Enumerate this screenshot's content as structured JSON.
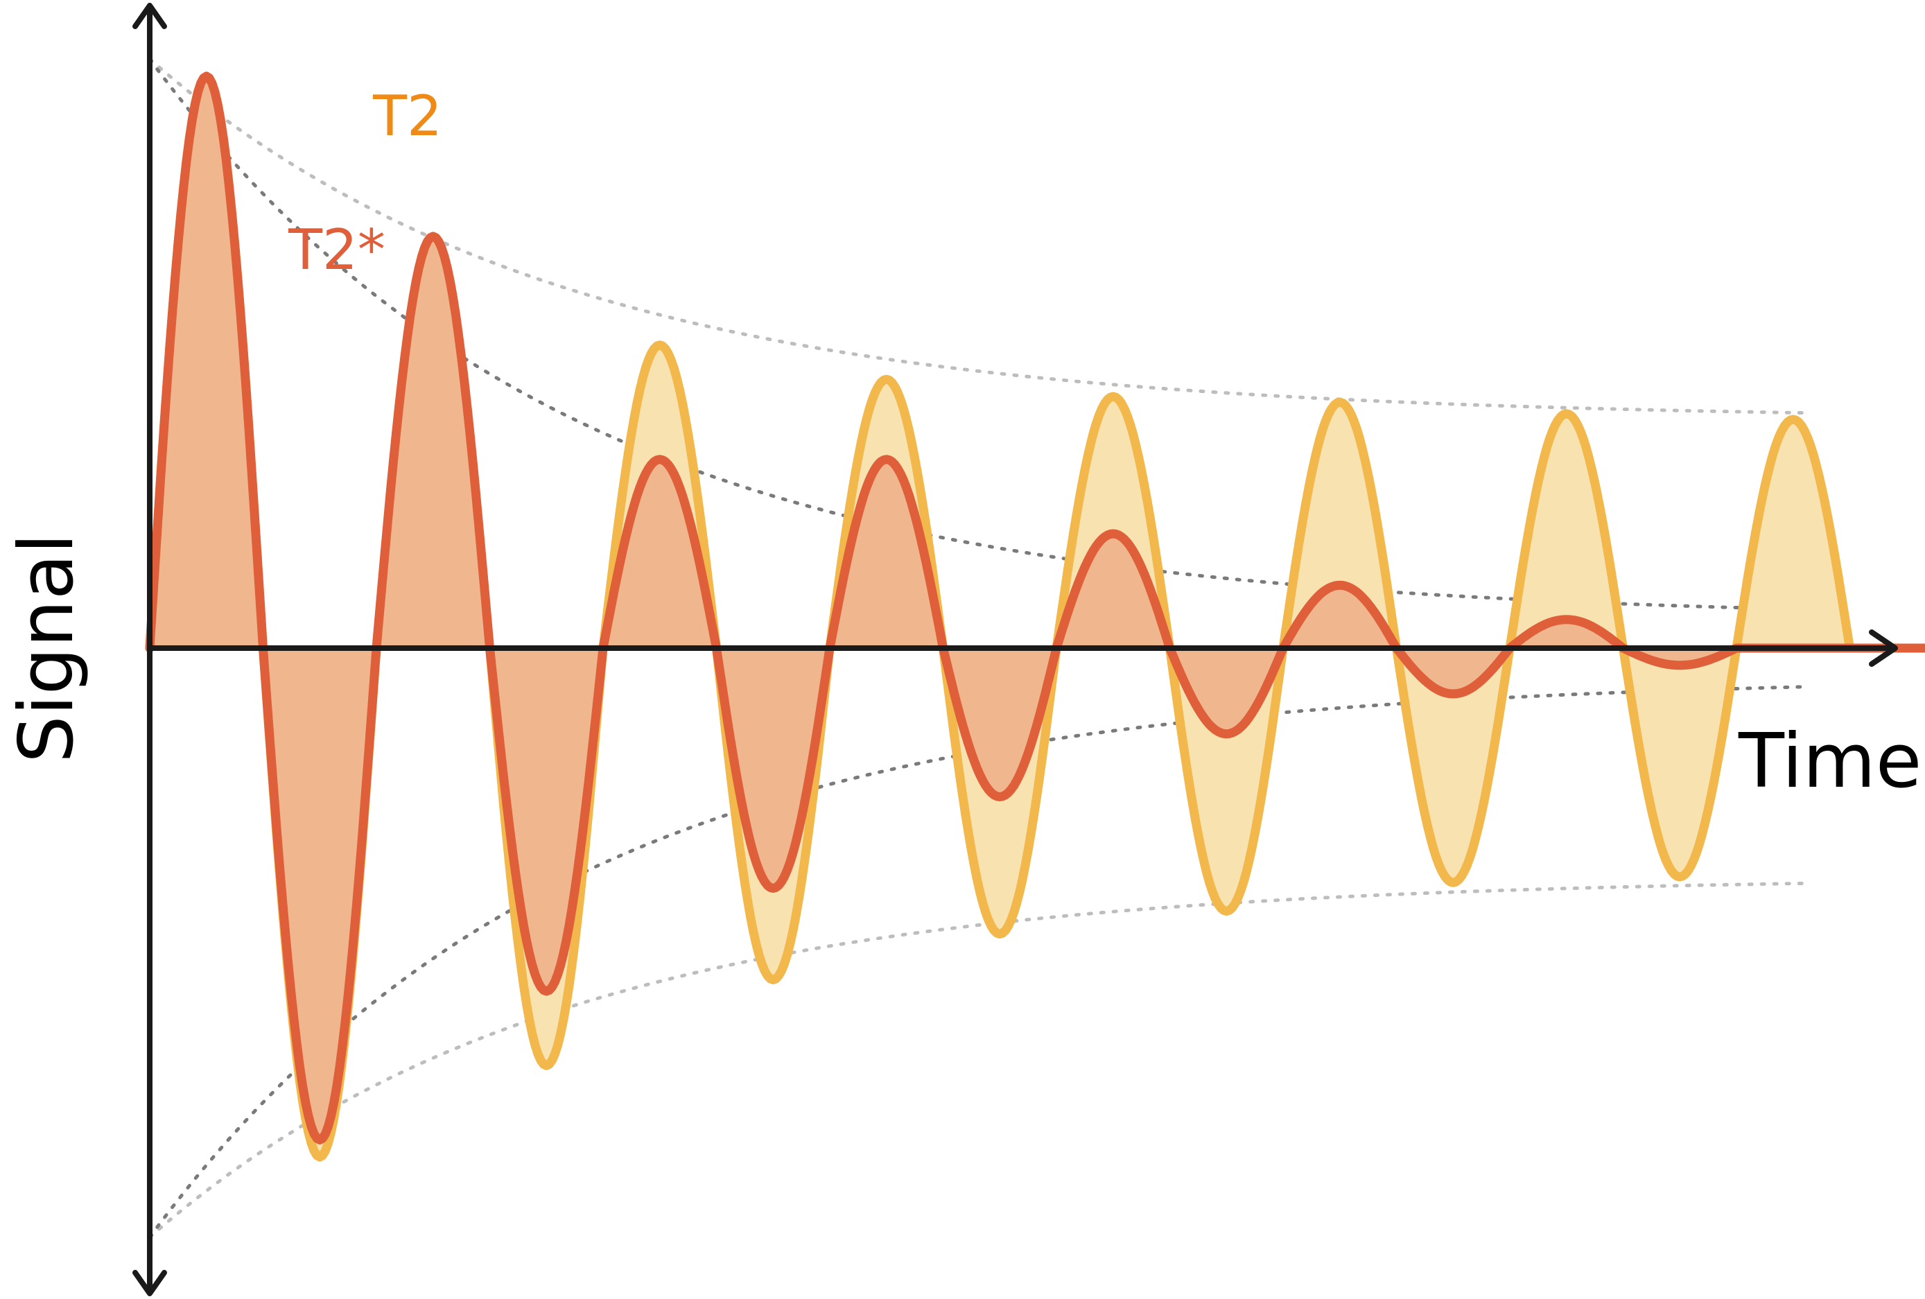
{
  "chart_data": {
    "type": "line",
    "title": "",
    "xlabel": "Time",
    "ylabel": "Signal",
    "grid": false,
    "legend": "inline labels, top-left",
    "colors": {
      "T2": "#f2b84b",
      "T2_fill": "#f8e2b0",
      "T2_label": "#ef8a17",
      "T2star": "#de5f3a",
      "T2star_fill": "#f0b78f",
      "envelope_light": "#bdbdbd",
      "envelope_dark": "#7a7a7a",
      "axis": "#1a1a1a"
    },
    "series": [
      {
        "name": "T2",
        "x_cycles": [
          0.25,
          0.75,
          1.25,
          1.75,
          2.25,
          2.75,
          3.25,
          3.75,
          4.25,
          4.75,
          5.25,
          5.75,
          6.25,
          6.75,
          7.25,
          7.75
        ],
        "peak_values": [
          1.0,
          -0.89,
          0.64,
          -0.73,
          0.53,
          -0.58,
          0.47,
          -0.5,
          0.44,
          -0.46,
          0.43,
          -0.41,
          0.41,
          -0.4,
          0.4,
          0
        ],
        "envelope_start": 1.03,
        "envelope_end": 0.4
      },
      {
        "name": "T2*",
        "x_cycles": [
          0.25,
          0.75,
          1.25,
          1.75,
          2.25,
          2.75,
          3.25,
          3.75,
          4.25,
          4.75,
          5.25,
          5.75,
          6.25,
          6.75,
          7.25,
          7.75
        ],
        "peak_values": [
          1.0,
          -0.86,
          0.72,
          -0.6,
          0.33,
          -0.42,
          0.33,
          -0.26,
          0.2,
          -0.15,
          0.11,
          -0.08,
          0.05,
          -0.03,
          0.0,
          0.0
        ],
        "envelope_start": 1.03,
        "envelope_end": 0.05
      }
    ],
    "xlim": [
      0,
      7.85
    ],
    "ylim": [
      -1.06,
      1.06
    ]
  },
  "labels": {
    "t2": "T2",
    "t2star": "T2*",
    "x_axis": "Time",
    "y_axis": "Signal"
  }
}
